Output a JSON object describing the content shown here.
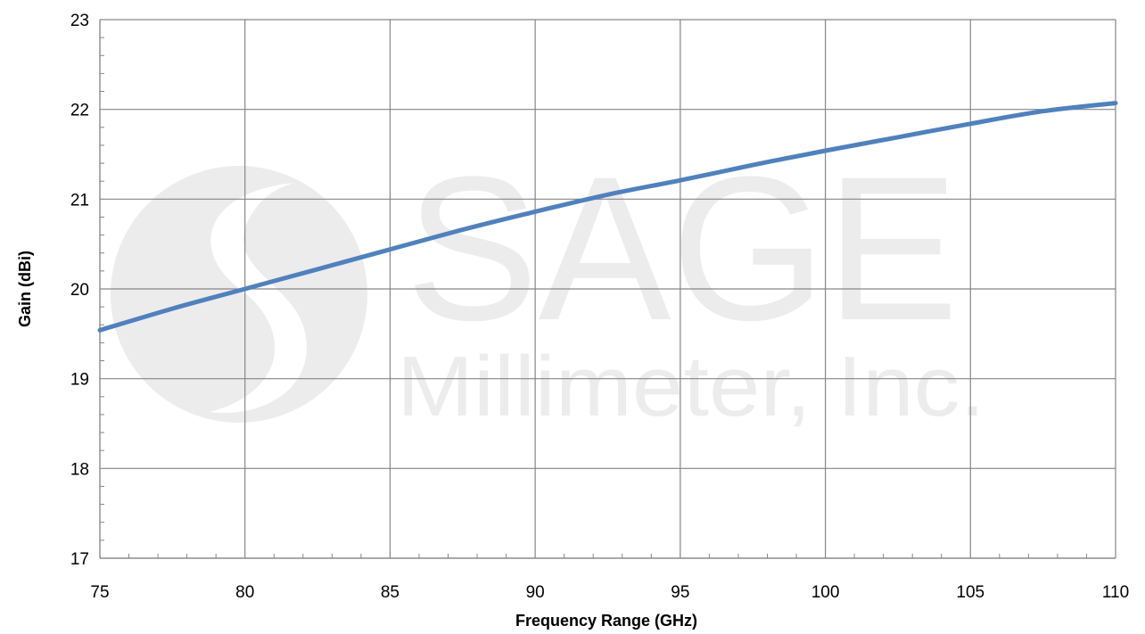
{
  "chart_data": {
    "type": "line",
    "xlabel": "Frequency Range (GHz)",
    "ylabel": "Gain (dBi)",
    "xlim": [
      75,
      110
    ],
    "ylim": [
      17,
      23
    ],
    "x_ticks": [
      "75",
      "80",
      "85",
      "90",
      "95",
      "100",
      "105",
      "110"
    ],
    "y_ticks": [
      "17",
      "18",
      "19",
      "20",
      "21",
      "22",
      "23"
    ],
    "grid": true,
    "legend": "none",
    "series": [
      {
        "color": "#4f81bd",
        "x": [
          75,
          77.5,
          80,
          82.5,
          85,
          87.5,
          90,
          92.5,
          95,
          97.5,
          100,
          102.5,
          105,
          107.5,
          110
        ],
        "values": [
          19.54,
          19.78,
          20.0,
          20.22,
          20.44,
          20.66,
          20.86,
          21.05,
          21.21,
          21.38,
          21.54,
          21.69,
          21.84,
          21.98,
          22.07
        ]
      }
    ]
  },
  "watermark": {
    "name": "SAGE",
    "subtitle": "Millimeter, Inc."
  },
  "colors": {
    "grid": "#868686",
    "axis": "#868686",
    "line": "#4f81bd",
    "watermark": "#ececec"
  }
}
